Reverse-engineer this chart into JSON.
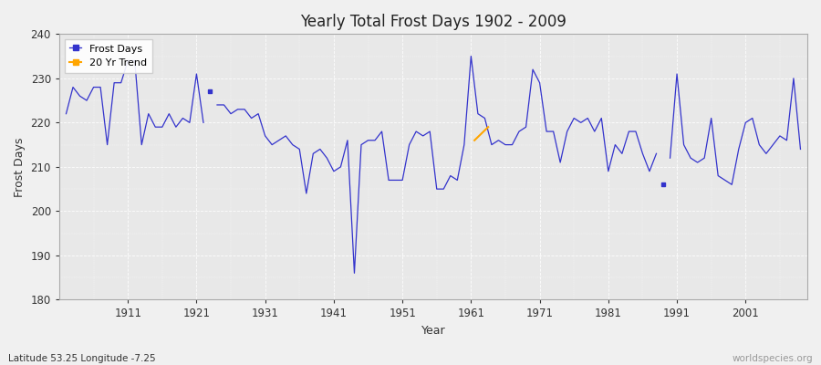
{
  "title": "Yearly Total Frost Days 1902 - 2009",
  "xlabel": "Year",
  "ylabel": "Frost Days",
  "subtitle": "Latitude 53.25 Longitude -7.25",
  "watermark": "worldspecies.org",
  "line_color": "#3333cc",
  "trend_color": "#FFA500",
  "bg_color": "#f0f0f0",
  "plot_bg_color": "#e8e8e8",
  "ylim": [
    180,
    240
  ],
  "xlim": [
    1901,
    2010
  ],
  "yticks": [
    180,
    190,
    200,
    210,
    220,
    230,
    240
  ],
  "xticks": [
    1911,
    1921,
    1931,
    1941,
    1951,
    1961,
    1971,
    1981,
    1991,
    2001
  ],
  "years": [
    1902,
    1903,
    1904,
    1905,
    1906,
    1907,
    1908,
    1909,
    1910,
    1911,
    1912,
    1913,
    1914,
    1915,
    1916,
    1917,
    1918,
    1919,
    1920,
    1921,
    1922,
    1923,
    1924,
    1925,
    1926,
    1927,
    1928,
    1929,
    1930,
    1931,
    1932,
    1933,
    1934,
    1935,
    1936,
    1937,
    1938,
    1939,
    1940,
    1941,
    1942,
    1943,
    1944,
    1945,
    1946,
    1947,
    1948,
    1949,
    1950,
    1951,
    1952,
    1953,
    1954,
    1955,
    1956,
    1957,
    1958,
    1959,
    1960,
    1961,
    1962,
    1963,
    1964,
    1965,
    1966,
    1967,
    1968,
    1969,
    1970,
    1971,
    1972,
    1973,
    1974,
    1975,
    1976,
    1977,
    1978,
    1979,
    1980,
    1981,
    1982,
    1983,
    1984,
    1985,
    1986,
    1987,
    1988,
    1989,
    1990,
    1991,
    1992,
    1993,
    1994,
    1995,
    1996,
    1997,
    1998,
    1999,
    2000,
    2001,
    2002,
    2003,
    2004,
    2005,
    2006,
    2007,
    2008,
    2009
  ],
  "values": [
    222,
    228,
    226,
    225,
    228,
    228,
    215,
    229,
    229,
    234,
    234,
    215,
    222,
    219,
    219,
    222,
    219,
    221,
    220,
    231,
    220,
    227,
    224,
    224,
    222,
    223,
    223,
    221,
    222,
    217,
    215,
    216,
    217,
    215,
    214,
    204,
    213,
    214,
    212,
    209,
    210,
    216,
    186,
    215,
    216,
    216,
    218,
    207,
    207,
    207,
    215,
    218,
    217,
    218,
    205,
    205,
    208,
    207,
    215,
    235,
    222,
    221,
    215,
    216,
    215,
    215,
    218,
    219,
    232,
    229,
    218,
    218,
    211,
    218,
    221,
    220,
    221,
    218,
    221,
    209,
    215,
    213,
    218,
    218,
    213,
    209,
    213,
    206,
    212,
    231,
    215,
    212,
    211,
    212,
    221,
    208,
    207,
    206,
    214,
    220,
    221,
    215,
    213,
    215,
    217,
    216,
    230,
    214
  ],
  "isolated_year_1": 1923,
  "isolated_val_1": 227,
  "isolated_year_2": 1989,
  "isolated_val_2": 206,
  "trend_x": [
    1961.5,
    1963.5
  ],
  "trend_y": [
    216,
    219
  ],
  "legend_loc": "upper left"
}
